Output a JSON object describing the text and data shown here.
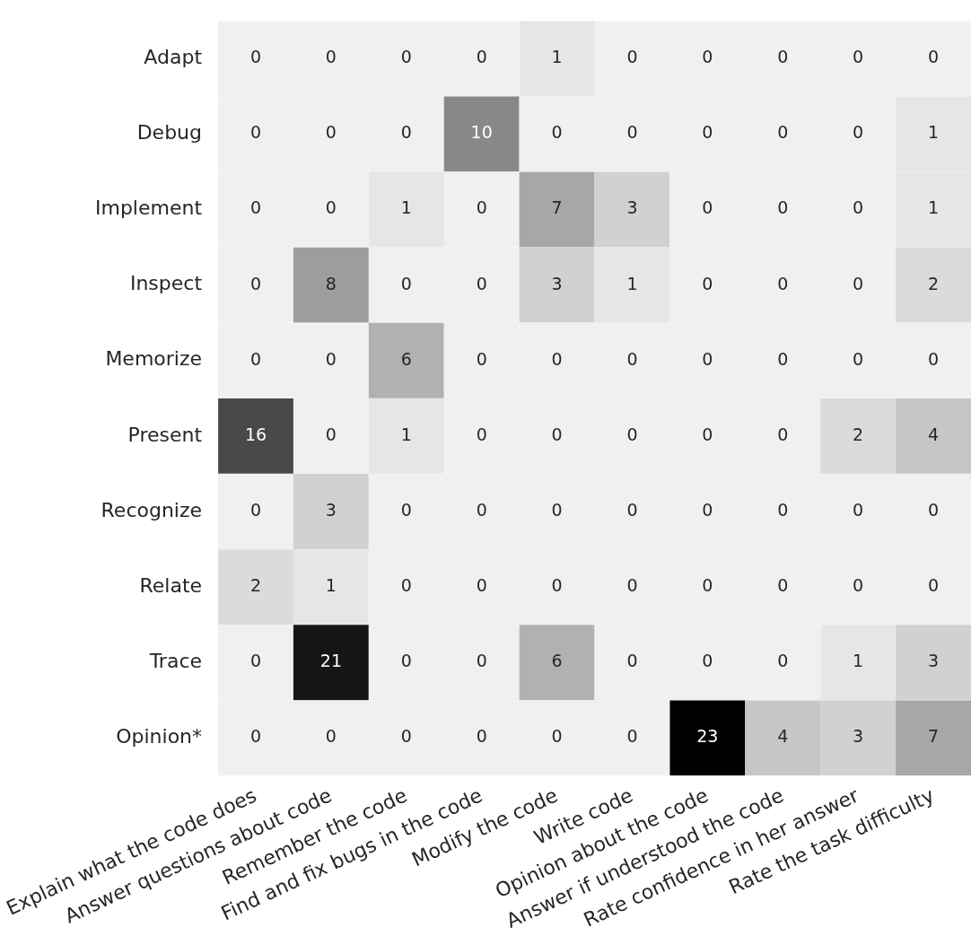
{
  "chart_data": {
    "type": "heatmap",
    "categories": [
      "Explain what the code does",
      "Answer questions about code",
      "Remember the code",
      "Find and fix bugs in the code",
      "Modify the code",
      "Write code",
      "Opinion about the code",
      "Answer if understood the code",
      "Rate confidence in her answer",
      "Rate the task difficulty"
    ],
    "y_categories": [
      "Adapt",
      "Debug",
      "Implement",
      "Inspect",
      "Memorize",
      "Present",
      "Recognize",
      "Relate",
      "Trace",
      "Opinion*"
    ],
    "cells": [
      [
        0,
        0,
        0,
        0,
        1,
        0,
        0,
        0,
        0,
        0
      ],
      [
        0,
        0,
        0,
        10,
        0,
        0,
        0,
        0,
        0,
        1
      ],
      [
        0,
        0,
        1,
        0,
        7,
        3,
        0,
        0,
        0,
        1
      ],
      [
        0,
        8,
        0,
        0,
        3,
        1,
        0,
        0,
        0,
        2
      ],
      [
        0,
        0,
        6,
        0,
        0,
        0,
        0,
        0,
        0,
        0
      ],
      [
        16,
        0,
        1,
        0,
        0,
        0,
        0,
        0,
        2,
        4
      ],
      [
        0,
        3,
        0,
        0,
        0,
        0,
        0,
        0,
        0,
        0
      ],
      [
        2,
        1,
        0,
        0,
        0,
        0,
        0,
        0,
        0,
        0
      ],
      [
        0,
        21,
        0,
        0,
        6,
        0,
        0,
        0,
        1,
        3
      ],
      [
        0,
        0,
        0,
        0,
        0,
        0,
        23,
        4,
        3,
        7
      ]
    ],
    "data_labels": true
  }
}
